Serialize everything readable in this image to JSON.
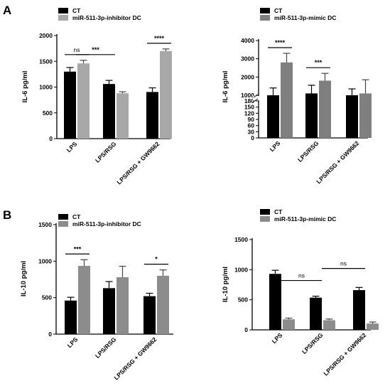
{
  "panels": {
    "A": "A",
    "B": "B"
  },
  "chart_data": [
    {
      "type": "bar",
      "ylabel": "IL-6 pg/ml",
      "categories": [
        "LPS",
        "LPS/RSG",
        "LPS/RSG + GW9662"
      ],
      "ylim": [
        0,
        2000
      ],
      "yticks": [
        "0",
        "500",
        "1000",
        "1500",
        "2000"
      ],
      "series": [
        {
          "name": "CT",
          "color": "#000000",
          "values": [
            1300,
            1060,
            905
          ],
          "errors": [
            80,
            70,
            80
          ]
        },
        {
          "name": "miR-511-3p-inhibitor DC",
          "color": "#a8a8a8",
          "values": [
            1460,
            880,
            1700
          ],
          "errors": [
            60,
            30,
            40
          ]
        }
      ],
      "annotations": [
        {
          "text": "ns",
          "type": "within",
          "category": 0
        },
        {
          "text": "***",
          "type": "between",
          "from": 0,
          "to": 1
        },
        {
          "text": "****",
          "type": "within",
          "category": 2
        }
      ]
    },
    {
      "type": "bar",
      "ylabel": "IL-6 pg/ml",
      "categories": [
        "LPS",
        "LPS/RSG",
        "LPS/RSG + GW9662"
      ],
      "broken_axis": true,
      "ylim_low": [
        0,
        180
      ],
      "ylim_high": [
        1000,
        4000
      ],
      "yticks_low": [
        "0",
        "30",
        "60",
        "90",
        "120",
        "150",
        "180"
      ],
      "yticks_high": [
        "1000",
        "2000",
        "3000",
        "4000"
      ],
      "series": [
        {
          "name": "CT",
          "color": "#000000",
          "values": [
            800,
            1100,
            900
          ],
          "errors": [
            600,
            450,
            450
          ]
        },
        {
          "name": "miR-511-3p-mimic DC",
          "color": "#7f7f7f",
          "values": [
            2800,
            1800,
            1100
          ],
          "errors": [
            500,
            400,
            750
          ]
        }
      ],
      "annotations": [
        {
          "text": "****",
          "type": "within",
          "category": 0
        },
        {
          "text": "***",
          "type": "within",
          "category": 1
        }
      ]
    },
    {
      "type": "bar",
      "ylabel": "IL-10 pg/ml",
      "categories": [
        "LPS",
        "LPS/RSG",
        "LPS/RSG + GW9662"
      ],
      "ylim": [
        0,
        1500
      ],
      "yticks": [
        "0",
        "500",
        "1000",
        "1500"
      ],
      "series": [
        {
          "name": "CT",
          "color": "#000000",
          "values": [
            460,
            630,
            520
          ],
          "errors": [
            45,
            90,
            40
          ]
        },
        {
          "name": "miR-511-3p-inhibitor DC",
          "color": "#8c8c8c",
          "values": [
            935,
            780,
            800
          ],
          "errors": [
            85,
            150,
            80
          ]
        }
      ],
      "annotations": [
        {
          "text": "***",
          "type": "within",
          "category": 0
        },
        {
          "text": "*",
          "type": "within",
          "category": 2
        }
      ]
    },
    {
      "type": "bar",
      "ylabel": "IL-10 pg/ml",
      "categories": [
        "LPS",
        "LPS/RSG",
        "LPS/RSG + GW9662"
      ],
      "ylim": [
        0,
        1500
      ],
      "yticks": [
        "0",
        "500",
        "1000",
        "1500"
      ],
      "series": [
        {
          "name": "CT",
          "color": "#000000",
          "values": [
            930,
            535,
            660
          ],
          "errors": [
            60,
            25,
            45
          ]
        },
        {
          "name": "miR-511-3p-mimic DC",
          "color": "#8c8c8c",
          "values": [
            175,
            160,
            105
          ],
          "errors": [
            20,
            20,
            25
          ]
        }
      ],
      "annotations": [
        {
          "text": "ns",
          "type": "between",
          "from": 0,
          "to": 1
        },
        {
          "text": "ns",
          "type": "between",
          "from": 1,
          "to": 2
        }
      ]
    }
  ]
}
